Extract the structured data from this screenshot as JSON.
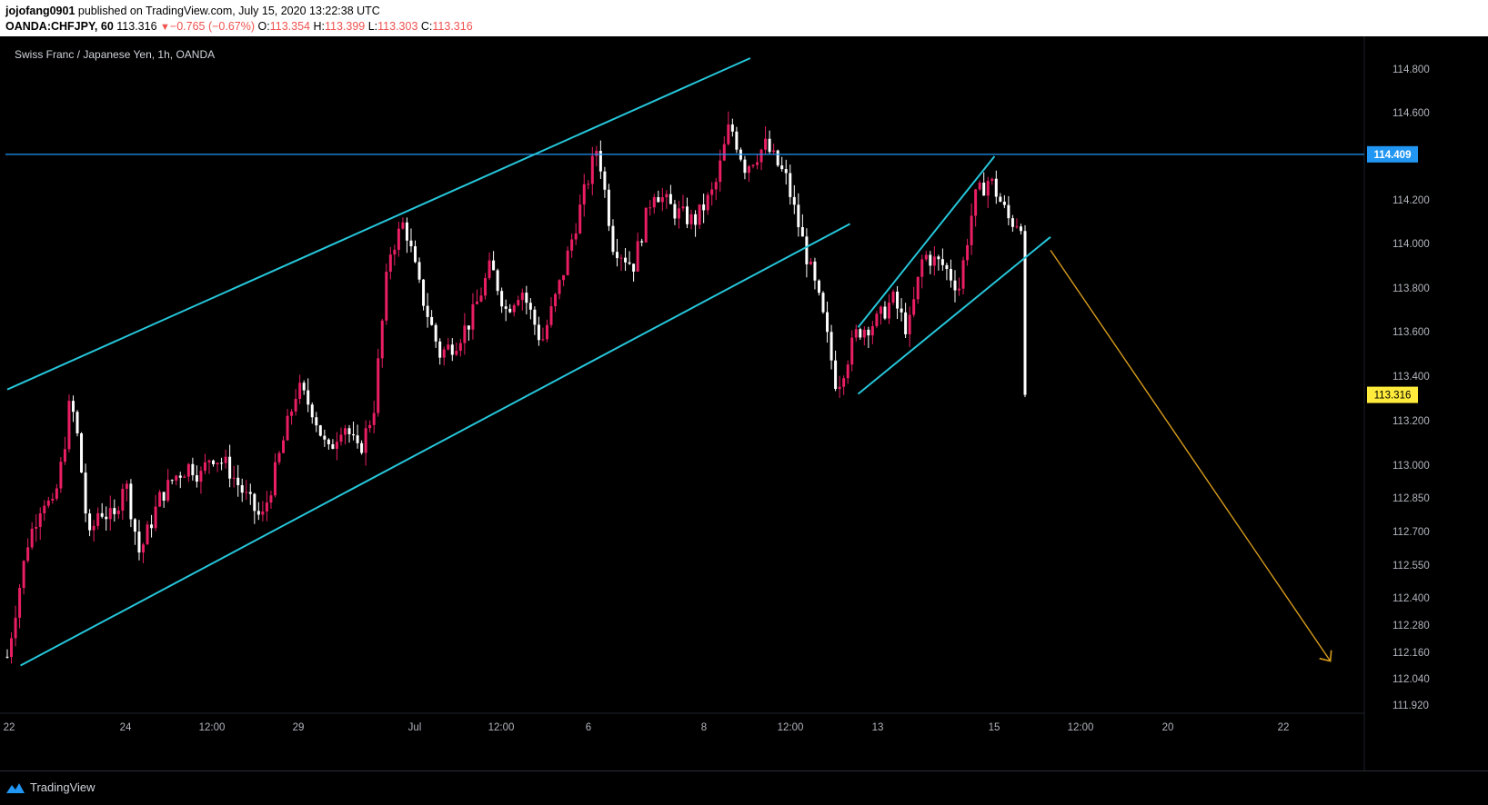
{
  "header": {
    "author": "jojofang0901",
    "publish_text": "published on TradingView.com, July 15, 2020 13:22:38 UTC",
    "symbol": "OANDA:CHFJPY, 60",
    "last": "113.316",
    "change": "−0.765 (−0.67%)",
    "o_label": "O:",
    "o_value": "113.354",
    "h_label": "H:",
    "h_value": "113.399",
    "l_label": "L:",
    "l_value": "113.303",
    "c_label": "C:",
    "c_value": "113.316"
  },
  "legend": {
    "title": "Swiss Franc / Japanese Yen, 1h, OANDA"
  },
  "footer": {
    "brand": "TradingView"
  },
  "colors": {
    "bull": "#e91e63",
    "bear": "#ffffff",
    "trend": "#26c6da",
    "hline": "#2196f3",
    "projection": "#d89c1c",
    "level_label_bg": "#2196f3",
    "last_label_bg": "#ffeb3b"
  },
  "chart_data": {
    "type": "candlestick",
    "title": "Swiss Franc / Japanese Yen, 1h, OANDA",
    "y_ticks": [
      "114.800",
      "114.600",
      "114.200",
      "114.000",
      "113.800",
      "113.600",
      "113.400",
      "113.200",
      "113.000",
      "112.850",
      "112.700",
      "112.550",
      "112.400",
      "112.280",
      "112.160",
      "112.040",
      "111.920"
    ],
    "x_ticks": [
      "22",
      "24",
      "12:00",
      "29",
      "Jul",
      "12:00",
      "6",
      "8",
      "12:00",
      "13",
      "15",
      "12:00",
      "20",
      "22"
    ],
    "horizontal_level": "114.409",
    "last_price": "113.316",
    "price_path": [
      [
        112.14,
        0.0
      ],
      [
        112.4,
        0.01
      ],
      [
        112.65,
        0.02
      ],
      [
        112.85,
        0.035
      ],
      [
        112.8,
        0.045
      ],
      [
        113.05,
        0.055
      ],
      [
        113.3,
        0.062
      ],
      [
        113.1,
        0.07
      ],
      [
        112.65,
        0.08
      ],
      [
        112.8,
        0.09
      ],
      [
        112.75,
        0.105
      ],
      [
        112.95,
        0.115
      ],
      [
        112.6,
        0.13
      ],
      [
        112.85,
        0.15
      ],
      [
        112.95,
        0.165
      ],
      [
        113.0,
        0.18
      ],
      [
        112.95,
        0.19
      ],
      [
        113.05,
        0.2
      ],
      [
        113.0,
        0.215
      ],
      [
        112.85,
        0.235
      ],
      [
        112.75,
        0.25
      ],
      [
        113.0,
        0.265
      ],
      [
        113.35,
        0.285
      ],
      [
        113.25,
        0.3
      ],
      [
        113.05,
        0.315
      ],
      [
        113.2,
        0.33
      ],
      [
        113.05,
        0.345
      ],
      [
        113.25,
        0.36
      ],
      [
        113.95,
        0.375
      ],
      [
        114.1,
        0.39
      ],
      [
        113.8,
        0.405
      ],
      [
        113.5,
        0.425
      ],
      [
        113.55,
        0.44
      ],
      [
        113.65,
        0.455
      ],
      [
        113.9,
        0.475
      ],
      [
        113.7,
        0.49
      ],
      [
        113.8,
        0.505
      ],
      [
        113.55,
        0.525
      ],
      [
        113.85,
        0.545
      ],
      [
        114.2,
        0.565
      ],
      [
        114.45,
        0.58
      ],
      [
        114.0,
        0.595
      ],
      [
        113.9,
        0.615
      ],
      [
        114.25,
        0.635
      ],
      [
        114.15,
        0.655
      ],
      [
        114.1,
        0.675
      ],
      [
        114.25,
        0.695
      ],
      [
        114.55,
        0.71
      ],
      [
        114.35,
        0.725
      ],
      [
        114.45,
        0.745
      ],
      [
        114.3,
        0.765
      ],
      [
        113.95,
        0.785
      ],
      [
        113.7,
        0.8
      ],
      [
        113.35,
        0.815
      ],
      [
        113.6,
        0.835
      ],
      [
        113.65,
        0.855
      ],
      [
        113.75,
        0.87
      ],
      [
        113.6,
        0.885
      ],
      [
        113.95,
        0.9
      ],
      [
        113.9,
        0.92
      ],
      [
        113.8,
        0.935
      ],
      [
        114.2,
        0.95
      ],
      [
        114.3,
        0.965
      ],
      [
        114.1,
        0.985
      ],
      [
        114.1,
        1.0
      ],
      [
        113.9,
        1.01
      ],
      [
        113.65,
        1.02
      ],
      [
        113.32,
        1.03
      ]
    ],
    "lines": [
      {
        "name": "channel-upper",
        "from": [
          113.34,
          0.0
        ],
        "to": [
          114.85,
          0.73
        ]
      },
      {
        "name": "channel-lower",
        "from": [
          112.1,
          0.013
        ],
        "to": [
          114.09,
          0.828
        ]
      },
      {
        "name": "flag-upper",
        "from": [
          113.62,
          0.836
        ],
        "to": [
          114.4,
          0.97
        ]
      },
      {
        "name": "flag-lower",
        "from": [
          113.32,
          0.836
        ],
        "to": [
          114.03,
          1.025
        ]
      },
      {
        "name": "projection",
        "from": [
          113.97,
          1.025
        ],
        "to": [
          112.12,
          1.3
        ]
      }
    ]
  }
}
